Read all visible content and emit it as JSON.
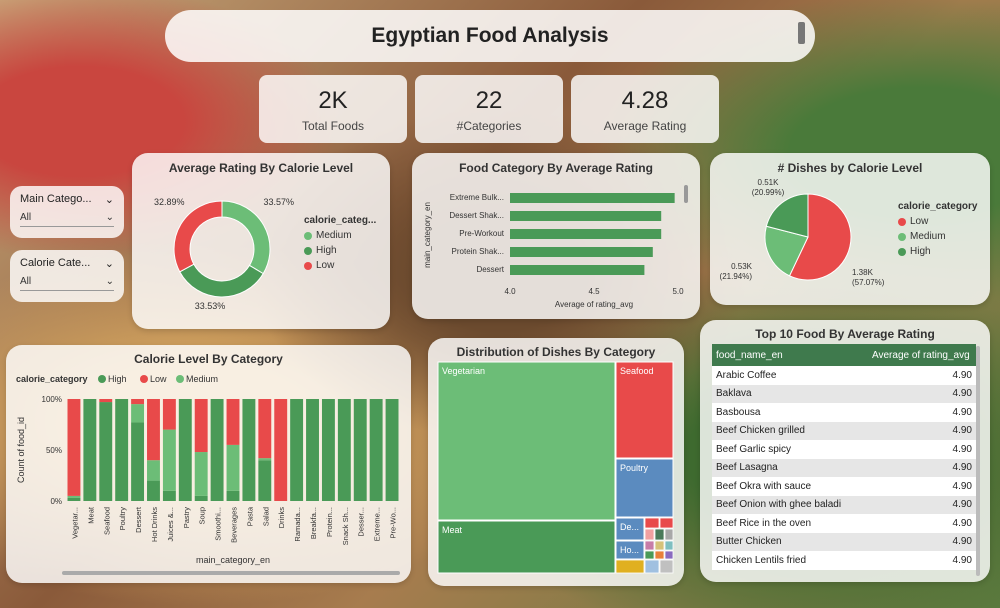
{
  "header": {
    "title": "Egyptian Food Analysis"
  },
  "kpis": [
    {
      "value": "2K",
      "label": "Total Foods"
    },
    {
      "value": "22",
      "label": "#Categories"
    },
    {
      "value": "4.28",
      "label": "Average Rating"
    }
  ],
  "slicers": [
    {
      "label": "Main Catego...",
      "value": "All"
    },
    {
      "label": "Calorie Cate...",
      "value": "All"
    }
  ],
  "colors": {
    "high": "#4a9a57",
    "low": "#e84a4a",
    "medium": "#6cbd77",
    "blue": "#5b8bbf",
    "accent_dark": "#3f7a4d"
  },
  "chart_data": [
    {
      "id": "avg-rating-donut",
      "type": "pie",
      "title": "Average Rating By Calorie Level",
      "legend_title": "calorie_categ...",
      "slices": [
        {
          "name": "Medium",
          "value": 33.57,
          "label": "33.57%",
          "color": "#6cbd77"
        },
        {
          "name": "High",
          "value": 33.53,
          "label": "33.53%",
          "color": "#4a9a57"
        },
        {
          "name": "Low",
          "value": 32.89,
          "label": "32.89%",
          "color": "#e84a4a"
        }
      ]
    },
    {
      "id": "food-category-bar",
      "type": "bar",
      "title": "Food Category By Average Rating",
      "ylabel": "main_category_en",
      "xlabel": "Average of rating_avg",
      "categories": [
        "Extreme Bulk...",
        "Dessert Shak...",
        "Pre-Workout",
        "Protein Shak...",
        "Dessert"
      ],
      "values": [
        4.98,
        4.9,
        4.9,
        4.85,
        4.8
      ],
      "xlim": [
        4.0,
        5.0
      ],
      "xticks": [
        "4.0",
        "4.5",
        "5.0"
      ]
    },
    {
      "id": "dishes-pie",
      "type": "pie",
      "title": "# Dishes by Calorie Level",
      "legend_title": "calorie_category",
      "slices": [
        {
          "name": "Low",
          "value": 57.07,
          "label": "1.38K (57.07%)",
          "color": "#e84a4a"
        },
        {
          "name": "Medium",
          "value": 21.94,
          "label": "0.53K (21.94%)",
          "color": "#6cbd77"
        },
        {
          "name": "High",
          "value": 20.99,
          "label": "0.51K (20.99%)",
          "color": "#4a9a57"
        }
      ]
    },
    {
      "id": "calorie-by-category",
      "type": "bar",
      "title": "Calorie Level By Category",
      "legend_title": "calorie_category",
      "ylabel": "Count of food_id",
      "xlabel": "main_category_en",
      "yticks": [
        "100%",
        "50%",
        "0%"
      ],
      "categories": [
        "Vegetar...",
        "Meat",
        "Seafood",
        "Poultry",
        "Dessert",
        "Hot Drinks",
        "Juices &...",
        "Pastry",
        "Soup",
        "Smoothi...",
        "Beverages",
        "Pasta",
        "Salad",
        "Drinks",
        "Ramada...",
        "Breakfa...",
        "Protein...",
        "Snack Sh...",
        "Desser...",
        "Extreme...",
        "Pre-Wo..."
      ],
      "series": [
        {
          "name": "High",
          "color": "#4a9a57",
          "values": [
            3,
            100,
            97,
            100,
            77,
            20,
            10,
            100,
            5,
            100,
            10,
            100,
            40,
            0,
            100,
            100,
            100,
            100,
            100,
            100,
            100
          ]
        },
        {
          "name": "Low",
          "color": "#e84a4a",
          "values": [
            95,
            0,
            3,
            0,
            5,
            60,
            30,
            0,
            52,
            0,
            45,
            0,
            58,
            100,
            0,
            0,
            0,
            0,
            0,
            0,
            0
          ]
        },
        {
          "name": "Medium",
          "color": "#6cbd77",
          "values": [
            2,
            0,
            0,
            0,
            18,
            20,
            60,
            0,
            43,
            0,
            45,
            0,
            2,
            0,
            0,
            0,
            0,
            0,
            0,
            0,
            0
          ]
        }
      ]
    },
    {
      "id": "dishes-treemap",
      "type": "heatmap",
      "title": "Distribution of Dishes By Category",
      "cells": [
        {
          "name": "Vegetarian",
          "label": "Vegetarian",
          "color": "#6cbd77"
        },
        {
          "name": "Meat",
          "label": "Meat",
          "color": "#4a9a57"
        },
        {
          "name": "Seafood",
          "label": "Seafood",
          "color": "#e84a4a"
        },
        {
          "name": "Poultry",
          "label": "Poultry",
          "color": "#5b8bbf"
        },
        {
          "name": "Dessert",
          "label": "De...",
          "color": "#5b8bbf"
        },
        {
          "name": "Hot Drinks",
          "label": "Ho...",
          "color": "#5b8bbf"
        }
      ]
    },
    {
      "id": "top10-table",
      "type": "table",
      "title": "Top 10 Food By Average Rating",
      "columns": [
        "food_name_en",
        "Average of rating_avg"
      ],
      "rows": [
        [
          "Arabic Coffee",
          "4.90"
        ],
        [
          "Baklava",
          "4.90"
        ],
        [
          "Basbousa",
          "4.90"
        ],
        [
          "Beef Chicken grilled",
          "4.90"
        ],
        [
          "Beef Garlic spicy",
          "4.90"
        ],
        [
          "Beef Lasagna",
          "4.90"
        ],
        [
          "Beef Okra with sauce",
          "4.90"
        ],
        [
          "Beef Onion with ghee baladi",
          "4.90"
        ],
        [
          "Beef Rice in the oven",
          "4.90"
        ],
        [
          "Butter Chicken",
          "4.90"
        ],
        [
          "Chicken Lentils fried",
          "4.90"
        ]
      ]
    }
  ]
}
